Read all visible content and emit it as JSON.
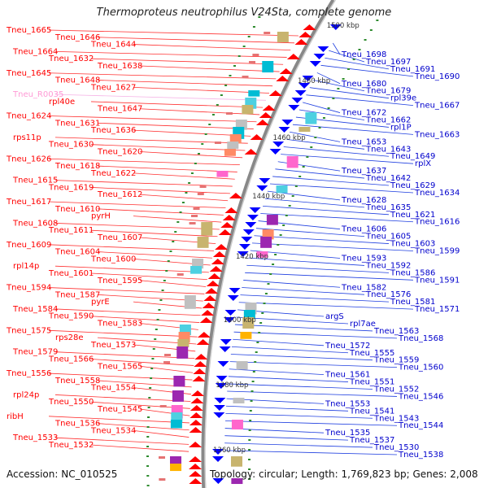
{
  "title": "Thermoproteus neutrophilus V24Sta, complete genome",
  "accession": "Accession: NC_010525",
  "summary": "Topology: circular; Length: 1,769,823 bp; Genes: 2,008",
  "colors": {
    "forward": "#ff0000",
    "reverse": "#0000ff",
    "rna": "#ee82ee",
    "backbone": "#888888"
  },
  "scale_labels": [
    "1500 kbp",
    "1480 kbp",
    "1460 kbp",
    "1440 kbp",
    "1420 kbp",
    "1400 kbp",
    "1380 kbp",
    "1360 kbp"
  ],
  "left_labels": [
    {
      "text": "Tneu_1665",
      "color": "red"
    },
    {
      "text": "Tneu_1646",
      "color": "red"
    },
    {
      "text": "Tneu_1644",
      "color": "red"
    },
    {
      "text": "Tneu_1664",
      "color": "red"
    },
    {
      "text": "Tneu_1632",
      "color": "red"
    },
    {
      "text": "Tneu_1638",
      "color": "red"
    },
    {
      "text": "Tneu_1645",
      "color": "red"
    },
    {
      "text": "Tneu_1648",
      "color": "red"
    },
    {
      "text": "Tneu_1627",
      "color": "red"
    },
    {
      "text": "Tneu_R0035",
      "color": "pink"
    },
    {
      "text": "rpl40e",
      "color": "red"
    },
    {
      "text": "Tneu_1647",
      "color": "red"
    },
    {
      "text": "Tneu_1624",
      "color": "red"
    },
    {
      "text": "Tneu_1631",
      "color": "red"
    },
    {
      "text": "Tneu_1636",
      "color": "red"
    },
    {
      "text": "rps11p",
      "color": "red"
    },
    {
      "text": "Tneu_1630",
      "color": "red"
    },
    {
      "text": "Tneu_1620",
      "color": "red"
    },
    {
      "text": "Tneu_1626",
      "color": "red"
    },
    {
      "text": "Tneu_1618",
      "color": "red"
    },
    {
      "text": "Tneu_1622",
      "color": "red"
    },
    {
      "text": "Tneu_1615",
      "color": "red"
    },
    {
      "text": "Tneu_1619",
      "color": "red"
    },
    {
      "text": "Tneu_1612",
      "color": "red"
    },
    {
      "text": "Tneu_1617",
      "color": "red"
    },
    {
      "text": "Tneu_1610",
      "color": "red"
    },
    {
      "text": "pyrH",
      "color": "red"
    },
    {
      "text": "Tneu_1608",
      "color": "red"
    },
    {
      "text": "Tneu_1611",
      "color": "red"
    },
    {
      "text": "Tneu_1607",
      "color": "red"
    },
    {
      "text": "Tneu_1609",
      "color": "red"
    },
    {
      "text": "Tneu_1604",
      "color": "red"
    },
    {
      "text": "Tneu_1600",
      "color": "red"
    },
    {
      "text": "rpl14p",
      "color": "red"
    },
    {
      "text": "Tneu_1601",
      "color": "red"
    },
    {
      "text": "Tneu_1595",
      "color": "red"
    },
    {
      "text": "Tneu_1594",
      "color": "red"
    },
    {
      "text": "Tneu_1587",
      "color": "red"
    },
    {
      "text": "pyrE",
      "color": "red"
    },
    {
      "text": "Tneu_1584",
      "color": "red"
    },
    {
      "text": "Tneu_1590",
      "color": "red"
    },
    {
      "text": "Tneu_1583",
      "color": "red"
    },
    {
      "text": "Tneu_1575",
      "color": "red"
    },
    {
      "text": "rps28e",
      "color": "red"
    },
    {
      "text": "Tneu_1573",
      "color": "red"
    },
    {
      "text": "Tneu_1579",
      "color": "red"
    },
    {
      "text": "Tneu_1566",
      "color": "red"
    },
    {
      "text": "Tneu_1565",
      "color": "red"
    },
    {
      "text": "Tneu_1556",
      "color": "red"
    },
    {
      "text": "Tneu_1558",
      "color": "red"
    },
    {
      "text": "Tneu_1554",
      "color": "red"
    },
    {
      "text": "rpl24p",
      "color": "red"
    },
    {
      "text": "Tneu_1550",
      "color": "red"
    },
    {
      "text": "Tneu_1545",
      "color": "red"
    },
    {
      "text": "ribH",
      "color": "red"
    },
    {
      "text": "Tneu_1536",
      "color": "red"
    },
    {
      "text": "Tneu_1534",
      "color": "red"
    },
    {
      "text": "Tneu_1533",
      "color": "red"
    },
    {
      "text": "Tneu_1532",
      "color": "red"
    }
  ],
  "right_labels": [
    {
      "text": "Tneu_1698"
    },
    {
      "text": "Tneu_1697"
    },
    {
      "text": "Tneu_1691"
    },
    {
      "text": "Tneu_1690"
    },
    {
      "text": "Tneu_1680"
    },
    {
      "text": "Tneu_1679"
    },
    {
      "text": "rpl39e"
    },
    {
      "text": "Tneu_1667"
    },
    {
      "text": "Tneu_1672"
    },
    {
      "text": "Tneu_1662"
    },
    {
      "text": "rpl1P"
    },
    {
      "text": "Tneu_1663"
    },
    {
      "text": "Tneu_1653"
    },
    {
      "text": "Tneu_1643"
    },
    {
      "text": "Tneu_1649"
    },
    {
      "text": "rplX"
    },
    {
      "text": "Tneu_1637"
    },
    {
      "text": "Tneu_1642"
    },
    {
      "text": "Tneu_1629"
    },
    {
      "text": "Tneu_1634"
    },
    {
      "text": "Tneu_1628"
    },
    {
      "text": "Tneu_1635"
    },
    {
      "text": "Tneu_1621"
    },
    {
      "text": "Tneu_1616"
    },
    {
      "text": "Tneu_1606"
    },
    {
      "text": "Tneu_1605"
    },
    {
      "text": "Tneu_1603"
    },
    {
      "text": "Tneu_1599"
    },
    {
      "text": "Tneu_1593"
    },
    {
      "text": "Tneu_1592"
    },
    {
      "text": "Tneu_1586"
    },
    {
      "text": "Tneu_1591"
    },
    {
      "text": "Tneu_1582"
    },
    {
      "text": "Tneu_1576"
    },
    {
      "text": "Tneu_1581"
    },
    {
      "text": "Tneu_1571"
    },
    {
      "text": "argS"
    },
    {
      "text": "rpl7ae"
    },
    {
      "text": "Tneu_1563"
    },
    {
      "text": "Tneu_1568"
    },
    {
      "text": "Tneu_1572"
    },
    {
      "text": "Tneu_1555"
    },
    {
      "text": "Tneu_1559"
    },
    {
      "text": "Tneu_1560"
    },
    {
      "text": "Tneu_1561"
    },
    {
      "text": "Tneu_1551"
    },
    {
      "text": "Tneu_1552"
    },
    {
      "text": "Tneu_1546"
    },
    {
      "text": "Tneu_1553"
    },
    {
      "text": "Tneu_1541"
    },
    {
      "text": "Tneu_1543"
    },
    {
      "text": "Tneu_1544"
    },
    {
      "text": "Tneu_1535"
    },
    {
      "text": "Tneu_1537"
    },
    {
      "text": "Tneu_1530"
    },
    {
      "text": "Tneu_1538"
    }
  ]
}
